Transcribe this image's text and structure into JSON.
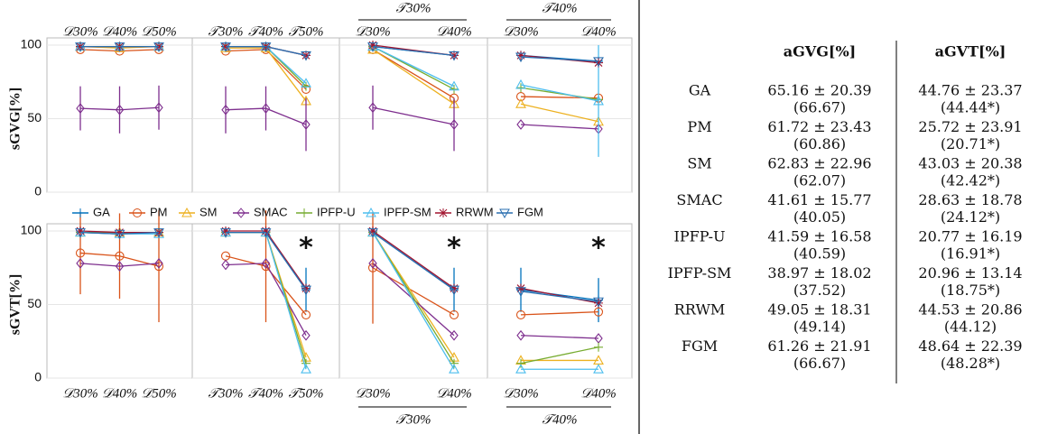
{
  "chart_data": [
    {
      "type": "line",
      "ylabel": "sGVG[%]",
      "xaxis": "top",
      "categories": [
        "𝒟30%",
        "𝒟40%",
        "𝒟50%"
      ],
      "ylim": [
        0,
        100
      ],
      "yticks": [
        0,
        50,
        100
      ],
      "series": [
        {
          "values": [
            99,
            99,
            99
          ]
        },
        {
          "values": [
            97,
            96,
            97
          ]
        },
        {
          "values": [
            99,
            98,
            99
          ]
        },
        {
          "values": [
            57,
            56,
            57.5
          ],
          "errors": [
            15,
            16,
            15
          ]
        },
        {
          "values": [
            99,
            99,
            99
          ]
        },
        {
          "values": [
            99,
            99,
            99
          ]
        },
        {
          "values": [
            99,
            99,
            99
          ]
        },
        {
          "values": [
            99,
            99,
            99
          ]
        }
      ]
    },
    {
      "type": "line",
      "xaxis": "top",
      "categories": [
        "𝒯30%",
        "𝒯40%",
        "𝒯50%"
      ],
      "ylim": [
        0,
        100
      ],
      "yticks": [
        0,
        50,
        100
      ],
      "series": [
        {
          "values": [
            99,
            99,
            93
          ]
        },
        {
          "values": [
            96,
            97,
            70
          ]
        },
        {
          "values": [
            98,
            98,
            62
          ]
        },
        {
          "values": [
            56,
            57,
            46
          ],
          "errors": [
            16,
            15,
            18
          ]
        },
        {
          "values": [
            99,
            99,
            72
          ]
        },
        {
          "values": [
            99,
            99,
            74
          ]
        },
        {
          "values": [
            99,
            99,
            93
          ]
        },
        {
          "values": [
            99,
            99,
            93
          ]
        }
      ]
    },
    {
      "type": "line",
      "xaxis": "top",
      "group_label": "𝒯30%",
      "categories": [
        "𝒟30%",
        "𝒟40%"
      ],
      "ylim": [
        0,
        100
      ],
      "yticks": [
        0,
        50,
        100
      ],
      "series": [
        {
          "values": [
            99,
            93
          ]
        },
        {
          "values": [
            97,
            64
          ]
        },
        {
          "values": [
            97,
            60
          ]
        },
        {
          "values": [
            57.5,
            46
          ],
          "errors": [
            15,
            18
          ]
        },
        {
          "values": [
            99,
            70
          ]
        },
        {
          "values": [
            99,
            72
          ]
        },
        {
          "values": [
            100,
            93
          ]
        },
        {
          "values": [
            99,
            93
          ]
        }
      ]
    },
    {
      "type": "line",
      "xaxis": "top",
      "group_label": "𝒯40%",
      "categories": [
        "𝒟30%",
        "𝒟40%"
      ],
      "ylim": [
        0,
        100
      ],
      "yticks": [
        0,
        50,
        100
      ],
      "series": [
        {
          "values": [
            93,
            89
          ]
        },
        {
          "values": [
            65,
            64
          ]
        },
        {
          "values": [
            60,
            48
          ]
        },
        {
          "values": [
            46,
            43
          ]
        },
        {
          "values": [
            71,
            63
          ]
        },
        {
          "values": [
            73,
            62
          ],
          "errors": [
            null,
            38
          ]
        },
        {
          "values": [
            93,
            88
          ]
        },
        {
          "values": [
            92,
            89
          ]
        }
      ]
    },
    {
      "type": "line",
      "ylabel": "sGVT[%]",
      "xaxis": "bottom",
      "categories": [
        "𝒟30%",
        "𝒟40%",
        "𝒟50%"
      ],
      "ylim": [
        0,
        100
      ],
      "yticks": [
        0,
        50,
        100
      ],
      "series": [
        {
          "values": [
            99,
            98,
            99
          ]
        },
        {
          "values": [
            85,
            83,
            76
          ],
          "errors": [
            28,
            29,
            38
          ]
        },
        {
          "values": [
            99,
            99,
            99
          ]
        },
        {
          "values": [
            78,
            76,
            78
          ]
        },
        {
          "values": [
            99,
            99,
            99
          ]
        },
        {
          "values": [
            99,
            98,
            98
          ]
        },
        {
          "values": [
            100,
            99,
            99
          ]
        },
        {
          "values": [
            99,
            98,
            99
          ]
        }
      ]
    },
    {
      "type": "line",
      "xaxis": "bottom",
      "annotation": "*",
      "categories": [
        "𝒯30%",
        "𝒯40%",
        "𝒯50%"
      ],
      "ylim": [
        0,
        100
      ],
      "yticks": [
        0,
        50,
        100
      ],
      "series": [
        {
          "values": [
            99,
            99,
            60
          ],
          "errors": [
            null,
            null,
            15
          ]
        },
        {
          "values": [
            83,
            76,
            43
          ],
          "errors": [
            null,
            38,
            null
          ]
        },
        {
          "values": [
            99,
            99,
            14
          ]
        },
        {
          "values": [
            77,
            78,
            29
          ]
        },
        {
          "values": [
            99,
            99,
            10
          ]
        },
        {
          "values": [
            99,
            99,
            6
          ]
        },
        {
          "values": [
            100,
            100,
            61
          ]
        },
        {
          "values": [
            99,
            99,
            60
          ]
        }
      ]
    },
    {
      "type": "line",
      "xaxis": "bottom",
      "annotation": "*",
      "group_label": "𝒯30%",
      "categories": [
        "𝒟30%",
        "𝒟40%"
      ],
      "ylim": [
        0,
        100
      ],
      "yticks": [
        0,
        50,
        100
      ],
      "series": [
        {
          "values": [
            99,
            60
          ],
          "errors": [
            null,
            15
          ]
        },
        {
          "values": [
            75,
            43
          ],
          "errors": [
            38,
            null
          ]
        },
        {
          "values": [
            99,
            14
          ]
        },
        {
          "values": [
            78,
            29
          ]
        },
        {
          "values": [
            99,
            10
          ]
        },
        {
          "values": [
            99,
            6
          ]
        },
        {
          "values": [
            100,
            61
          ]
        },
        {
          "values": [
            99,
            60
          ]
        }
      ]
    },
    {
      "type": "line",
      "xaxis": "bottom",
      "annotation": "*",
      "group_label": "𝒯40%",
      "categories": [
        "𝒟30%",
        "𝒟40%"
      ],
      "ylim": [
        0,
        100
      ],
      "yticks": [
        0,
        50,
        100
      ],
      "series": [
        {
          "values": [
            60,
            53
          ],
          "errors": [
            15,
            15
          ]
        },
        {
          "values": [
            43,
            45
          ]
        },
        {
          "values": [
            12,
            12
          ]
        },
        {
          "values": [
            29,
            27
          ]
        },
        {
          "values": [
            10,
            21
          ]
        },
        {
          "values": [
            6,
            6
          ]
        },
        {
          "values": [
            61,
            51
          ]
        },
        {
          "values": [
            59,
            52
          ]
        }
      ]
    }
  ],
  "legend": {
    "series": [
      {
        "name": "GA",
        "color": "#0072bd"
      },
      {
        "name": "PM",
        "color": "#d95319"
      },
      {
        "name": "SM",
        "color": "#edb120"
      },
      {
        "name": "SMAC",
        "color": "#7e2f8e"
      },
      {
        "name": "IPFP-U",
        "color": "#77ac30"
      },
      {
        "name": "IPFP-SM",
        "color": "#4dbeee"
      },
      {
        "name": "RRWM",
        "color": "#a2142f"
      },
      {
        "name": "FGM",
        "color": "#2a6fb0"
      }
    ]
  },
  "table": {
    "header": [
      "aGVG[%]",
      "aGVT[%]"
    ],
    "rows": [
      [
        "GA",
        "65.16 ± 20.39",
        "(66.67)",
        "44.76 ± 23.37",
        "(44.44*)"
      ],
      [
        "PM",
        "61.72 ± 23.43",
        "(60.86)",
        "25.72 ± 23.91",
        "(20.71*)"
      ],
      [
        "SM",
        "62.83 ± 22.96",
        "(62.07)",
        "43.03 ± 20.38",
        "(42.42*)"
      ],
      [
        "SMAC",
        "41.61 ± 15.77",
        "(40.05)",
        "28.63 ± 18.78",
        "(24.12*)"
      ],
      [
        "IPFP-U",
        "41.59 ± 16.58",
        "(40.59)",
        "20.77 ± 16.19",
        "(16.91*)"
      ],
      [
        "IPFP-SM",
        "38.97 ± 18.02",
        "(37.52)",
        "20.96 ± 13.14",
        "(18.75*)"
      ],
      [
        "RRWM",
        "49.05 ± 18.31",
        "(49.14)",
        "44.53 ± 20.86",
        "(44.12)"
      ],
      [
        "FGM",
        "61.26 ± 21.91",
        "(66.67)",
        "48.64 ± 22.39",
        "(48.28*)"
      ]
    ]
  }
}
